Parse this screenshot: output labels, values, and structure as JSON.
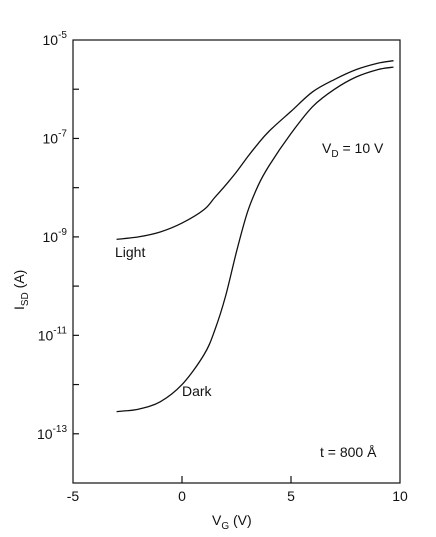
{
  "chart_data": {
    "type": "line",
    "xlabel": {
      "main": "V",
      "sub": "G",
      "unit": " (V)"
    },
    "ylabel": {
      "main": "I",
      "sub": "SD",
      "unit": " (A)"
    },
    "xlim": [
      -5,
      10
    ],
    "ylim_log10": [
      -14,
      -5
    ],
    "y_scale": "log",
    "grid": false,
    "x_ticks": [
      {
        "value": -5,
        "label": "-5"
      },
      {
        "value": 0,
        "label": "0"
      },
      {
        "value": 5,
        "label": "5"
      },
      {
        "value": 10,
        "label": "10"
      }
    ],
    "y_ticks": [
      {
        "value": -5,
        "base": "10",
        "exp": "-5"
      },
      {
        "value": -7,
        "base": "10",
        "exp": "-7"
      },
      {
        "value": -9,
        "base": "10",
        "exp": "-9"
      },
      {
        "value": -11,
        "base": "10",
        "exp": "-11"
      },
      {
        "value": -13,
        "base": "10",
        "exp": "-13"
      }
    ],
    "series": [
      {
        "name": "Light",
        "x": [
          -3,
          -2,
          -1,
          0,
          1,
          1.5,
          2,
          2.5,
          3,
          3.5,
          4,
          5,
          6,
          7,
          8,
          9,
          9.7
        ],
        "log10_y": [
          -9.05,
          -9.0,
          -8.9,
          -8.72,
          -8.45,
          -8.2,
          -7.95,
          -7.68,
          -7.38,
          -7.1,
          -6.85,
          -6.45,
          -6.05,
          -5.8,
          -5.6,
          -5.47,
          -5.42
        ]
      },
      {
        "name": "Dark",
        "x": [
          -3,
          -2,
          -1,
          0,
          1,
          1.5,
          2,
          2.5,
          3,
          3.5,
          4,
          5,
          6,
          7,
          8,
          9,
          9.7
        ],
        "log10_y": [
          -12.55,
          -12.5,
          -12.35,
          -12.0,
          -11.4,
          -10.9,
          -10.2,
          -9.3,
          -8.5,
          -7.95,
          -7.55,
          -6.9,
          -6.35,
          -6.0,
          -5.75,
          -5.6,
          -5.55
        ]
      }
    ],
    "annotations": {
      "light_label": "Light",
      "dark_label": "Dark",
      "vd": {
        "main": "V",
        "sub": "D",
        "rest": " = 10 V"
      },
      "thickness": "t = 800 Å"
    }
  }
}
